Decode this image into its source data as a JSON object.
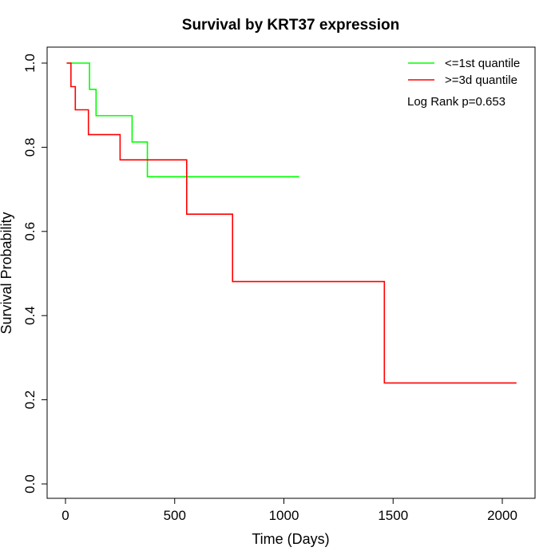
{
  "chart_data": {
    "type": "line",
    "title": "Survival by KRT37 expression",
    "xlabel": "Time (Days)",
    "ylabel": "Survival Probability",
    "xlim": [
      0,
      2070
    ],
    "ylim": [
      0,
      1
    ],
    "x_ticks": [
      0,
      500,
      1000,
      1500,
      2000
    ],
    "y_ticks": [
      0.0,
      0.2,
      0.4,
      0.6,
      0.8,
      1.0
    ],
    "x_tick_labels": [
      "0",
      "500",
      "1000",
      "1500",
      "2000"
    ],
    "y_tick_labels": [
      "0.0",
      "0.2",
      "0.4",
      "0.6",
      "0.8",
      "1.0"
    ],
    "grid": false,
    "legend_position": "top-right",
    "annotation": "Log Rank p=0.653",
    "series": [
      {
        "name": "<=1st quantile",
        "color": "#00ff00",
        "step": true,
        "x": [
          10,
          110,
          140,
          305,
          375,
          1070
        ],
        "y": [
          1.0,
          0.9375,
          0.875,
          0.8125,
          0.73,
          0.73
        ]
      },
      {
        "name": ">=3d quantile",
        "color": "#ff0000",
        "step": true,
        "x": [
          5,
          25,
          45,
          105,
          250,
          555,
          765,
          1460,
          2065
        ],
        "y": [
          1.0,
          0.944,
          0.889,
          0.83,
          0.77,
          0.641,
          0.481,
          0.24,
          0.24
        ]
      }
    ]
  }
}
